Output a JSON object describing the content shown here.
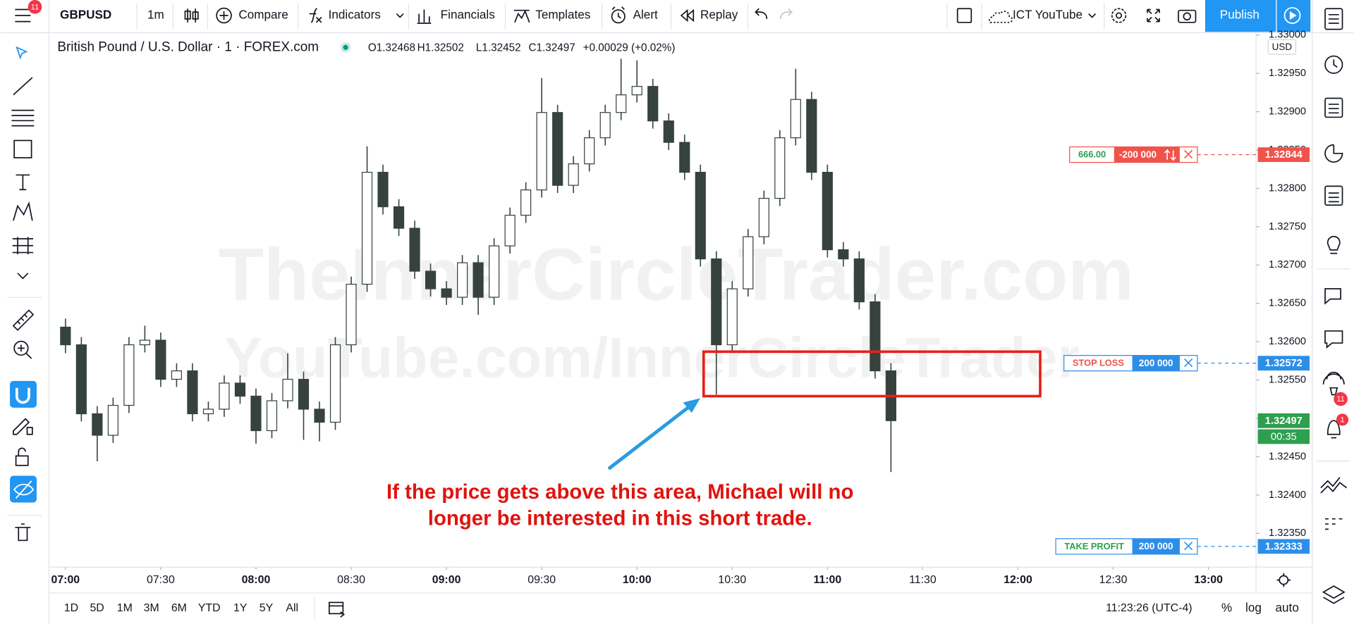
{
  "toolbar": {
    "symbol": "GBPUSD",
    "interval": "1m",
    "compare": "Compare",
    "indicators": "Indicators",
    "financials": "Financials",
    "templates": "Templates",
    "alert": "Alert",
    "replay": "Replay",
    "layout": "ICT YouTube",
    "publish": "Publish",
    "menu_badge": "11"
  },
  "legend": {
    "title": "British Pound / U.S. Dollar · 1 · FOREX.com",
    "open": "O1.32468",
    "high": "H1.32502",
    "low": "L1.32452",
    "close": "C1.32497",
    "change": "+0.00029 (+0.02%)"
  },
  "sidebar": {
    "chat_badge": "11",
    "alert_badge": "1"
  },
  "bottom_bar": {
    "ranges": [
      "1D",
      "5D",
      "1M",
      "3M",
      "6M",
      "YTD",
      "1Y",
      "5Y",
      "All"
    ],
    "clock": "11:23:26 (UTC-4)",
    "percent": "%",
    "log": "log",
    "auto": "auto"
  },
  "chart_data": {
    "type": "candlestick",
    "x": [
      "07:00",
      "07:05",
      "07:10",
      "07:15",
      "07:20",
      "07:25",
      "07:30",
      "07:35",
      "07:40",
      "07:45",
      "07:50",
      "07:55",
      "08:00",
      "08:05",
      "08:10",
      "08:15",
      "08:20",
      "08:25",
      "08:30",
      "08:35",
      "08:40",
      "08:45",
      "08:50",
      "08:55",
      "09:00",
      "09:05",
      "09:10",
      "09:15",
      "09:20",
      "09:25",
      "09:30",
      "09:35",
      "09:40",
      "09:45",
      "09:50",
      "09:55",
      "10:00",
      "10:05",
      "10:10",
      "10:15",
      "10:20",
      "10:25",
      "10:30",
      "10:35",
      "10:40",
      "10:45",
      "10:50",
      "10:55",
      "11:00",
      "11:05",
      "11:10",
      "11:15",
      "11:20"
    ],
    "open": [
      1.32619,
      1.32596,
      1.32506,
      1.32478,
      1.32517,
      1.32596,
      1.32602,
      1.32551,
      1.32562,
      1.32506,
      1.32512,
      1.32546,
      1.32529,
      1.32484,
      1.32523,
      1.32551,
      1.32512,
      1.32495,
      1.32596,
      1.32675,
      1.32821,
      1.32776,
      1.32748,
      1.32692,
      1.32669,
      1.32658,
      1.32703,
      1.32658,
      1.32725,
      1.32765,
      1.32798,
      1.32899,
      1.32804,
      1.32832,
      1.32866,
      1.32899,
      1.32922,
      1.32933,
      1.32888,
      1.3286,
      1.32821,
      1.32708,
      1.32596,
      1.32669,
      1.32737,
      1.32787,
      1.32866,
      1.32916,
      1.32821,
      1.3272,
      1.32708,
      1.32652,
      1.32562
    ],
    "high": [
      1.3263,
      1.32606,
      1.32516,
      1.32527,
      1.32606,
      1.32621,
      1.32612,
      1.32572,
      1.32572,
      1.32522,
      1.32556,
      1.32556,
      1.32539,
      1.32533,
      1.32585,
      1.32561,
      1.32522,
      1.32606,
      1.32685,
      1.32855,
      1.32831,
      1.32786,
      1.32758,
      1.32702,
      1.32679,
      1.32713,
      1.32713,
      1.32735,
      1.32775,
      1.32808,
      1.32944,
      1.32909,
      1.32842,
      1.32876,
      1.32909,
      1.32969,
      1.32967,
      1.32943,
      1.32898,
      1.3287,
      1.32831,
      1.32718,
      1.32679,
      1.32747,
      1.32797,
      1.32876,
      1.32956,
      1.32926,
      1.32831,
      1.3273,
      1.32718,
      1.32662,
      1.32572
    ],
    "low": [
      1.32585,
      1.32496,
      1.32444,
      1.32468,
      1.32507,
      1.32586,
      1.32541,
      1.32541,
      1.32496,
      1.32496,
      1.32502,
      1.32519,
      1.32467,
      1.32474,
      1.32513,
      1.32472,
      1.3247,
      1.32485,
      1.32586,
      1.32665,
      1.32766,
      1.32738,
      1.32682,
      1.32659,
      1.32648,
      1.32648,
      1.32635,
      1.32648,
      1.32715,
      1.32755,
      1.32788,
      1.32794,
      1.32794,
      1.32822,
      1.32856,
      1.32889,
      1.32912,
      1.32878,
      1.3285,
      1.32811,
      1.32698,
      1.32531,
      1.32586,
      1.32659,
      1.32727,
      1.32777,
      1.32856,
      1.32811,
      1.3271,
      1.32698,
      1.32642,
      1.32552,
      1.3243
    ],
    "close": [
      1.32596,
      1.32506,
      1.32478,
      1.32517,
      1.32596,
      1.32602,
      1.32551,
      1.32562,
      1.32506,
      1.32512,
      1.32546,
      1.32529,
      1.32484,
      1.32523,
      1.32551,
      1.32512,
      1.32495,
      1.32596,
      1.32675,
      1.32821,
      1.32776,
      1.32748,
      1.32692,
      1.32669,
      1.32658,
      1.32703,
      1.32658,
      1.32725,
      1.32765,
      1.32798,
      1.32899,
      1.32804,
      1.32832,
      1.32866,
      1.32899,
      1.32922,
      1.32933,
      1.32888,
      1.3286,
      1.32821,
      1.32708,
      1.32596,
      1.32669,
      1.32737,
      1.32787,
      1.32866,
      1.32916,
      1.32821,
      1.3272,
      1.32708,
      1.32652,
      1.32562,
      1.32497
    ],
    "up_color": "#ffffff",
    "down_color": "#36433c",
    "wick_color": "#36433c",
    "xlim": [
      "06:55",
      "13:15"
    ],
    "xticks": [
      "07:00",
      "07:30",
      "08:00",
      "08:30",
      "09:00",
      "09:30",
      "10:00",
      "10:30",
      "11:00",
      "11:30",
      "12:00",
      "12:30",
      "13:00"
    ],
    "ylim": [
      1.32306,
      1.33003
    ],
    "yticks": [
      {
        "value": 1.3235,
        "label": "1.32350"
      },
      {
        "value": 1.324,
        "label": "1.32400"
      },
      {
        "value": 1.3245,
        "label": "1.32450"
      },
      {
        "value": 1.325,
        "label": "1.32500"
      },
      {
        "value": 1.3255,
        "label": "1.32550"
      },
      {
        "value": 1.326,
        "label": "1.32600"
      },
      {
        "value": 1.3265,
        "label": "1.32650"
      },
      {
        "value": 1.327,
        "label": "1.32700"
      },
      {
        "value": 1.3275,
        "label": "1.32750"
      },
      {
        "value": 1.328,
        "label": "1.32800"
      },
      {
        "value": 1.3285,
        "label": "1.32850"
      },
      {
        "value": 1.329,
        "label": "1.32900"
      },
      {
        "value": 1.3295,
        "label": "1.32950"
      },
      {
        "value": 1.33,
        "label": "1.33000"
      }
    ],
    "currency": "USD",
    "watermark": [
      "TheInnerCircleTrader.com",
      "YouTube.com/InnerCircleTrader"
    ],
    "zone": {
      "start": "10:21",
      "end": "12:07",
      "top": 1.32587,
      "bottom": 1.32529,
      "color": "#e8201a"
    },
    "annotation": [
      "If the price gets above this area, Michael will no",
      "longer be interested in this short trade."
    ],
    "annotation_color": "#e0130f",
    "last_price": {
      "value": 1.32497,
      "countdown": "00:35",
      "color": "#2e9e4f"
    },
    "orders": [
      {
        "price": 1.32844,
        "text": "666.00",
        "text_color": "#2e9e4f",
        "qty": "-200 000",
        "color": "#f0534a",
        "reverse": true
      },
      {
        "price": 1.32572,
        "text": "STOP LOSS",
        "text_color": "#f0534a",
        "qty": "200 000",
        "color": "#2d8ee8",
        "reverse": false
      },
      {
        "price": 1.32333,
        "text": "TAKE PROFIT",
        "text_color": "#2e9e4f",
        "qty": "200 000",
        "color": "#2d8ee8",
        "reverse": false
      }
    ]
  }
}
